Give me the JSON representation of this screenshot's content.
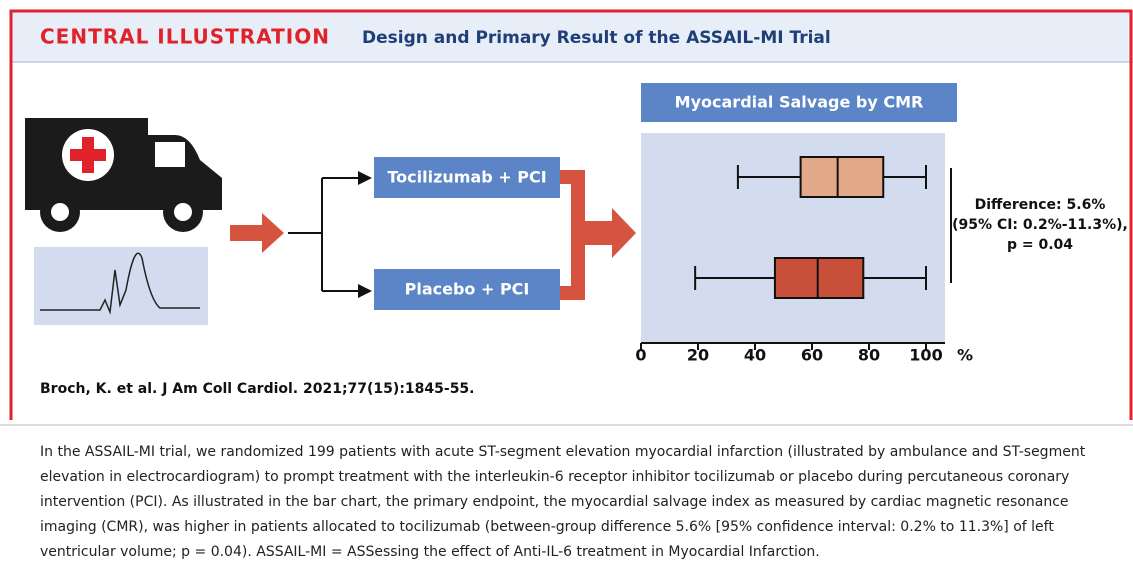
{
  "header": {
    "label": "CENTRAL ILLUSTRATION",
    "title": "Design and Primary Result of the ASSAIL-MI Trial"
  },
  "flow": {
    "arms": [
      "Tocilizumab + PCI",
      "Placebo + PCI"
    ]
  },
  "chart_data": {
    "type": "boxplot",
    "title": "Myocardial Salvage by CMR",
    "categories": [
      null,
      null
    ],
    "boxes": [
      {
        "min": 34,
        "q1": 56,
        "median": 69,
        "q3": 85,
        "max": 100,
        "color": "#e3a888"
      },
      {
        "min": 19,
        "q1": 47,
        "median": 62,
        "q3": 78,
        "max": 100,
        "color": "#c8503a"
      }
    ],
    "xlim": [
      0,
      100
    ],
    "xticks": [
      0,
      20,
      40,
      60,
      80,
      100
    ],
    "x_unit": "%",
    "annotation": [
      "Difference: 5.6%",
      "(95% CI: 0.2%-11.3%),",
      "p = 0.04"
    ]
  },
  "citation": "Broch, K. et al. J Am Coll Cardiol. 2021;77(15):1845-55.",
  "caption": "In the ASSAIL-MI trial, we randomized 199 patients with acute ST-segment elevation myocardial infarction (illustrated by ambulance and ST-segment elevation in electrocardiogram) to prompt treatment with the interleukin-6 receptor inhibitor tocilizumab or placebo during percutaneous coronary intervention (PCI). As illustrated in the bar chart, the primary endpoint, the myocardial salvage index as measured by cardiac magnetic resonance imaging (CMR), was higher in patients allocated to tocilizumab (between-group difference 5.6% [95% confidence interval: 0.2% to 11.3%] of left ventricular volume; p = 0.04). ASSAIL-MI = ASSessing the effect of Anti-IL-6 treatment in Myocardial Infarction."
}
